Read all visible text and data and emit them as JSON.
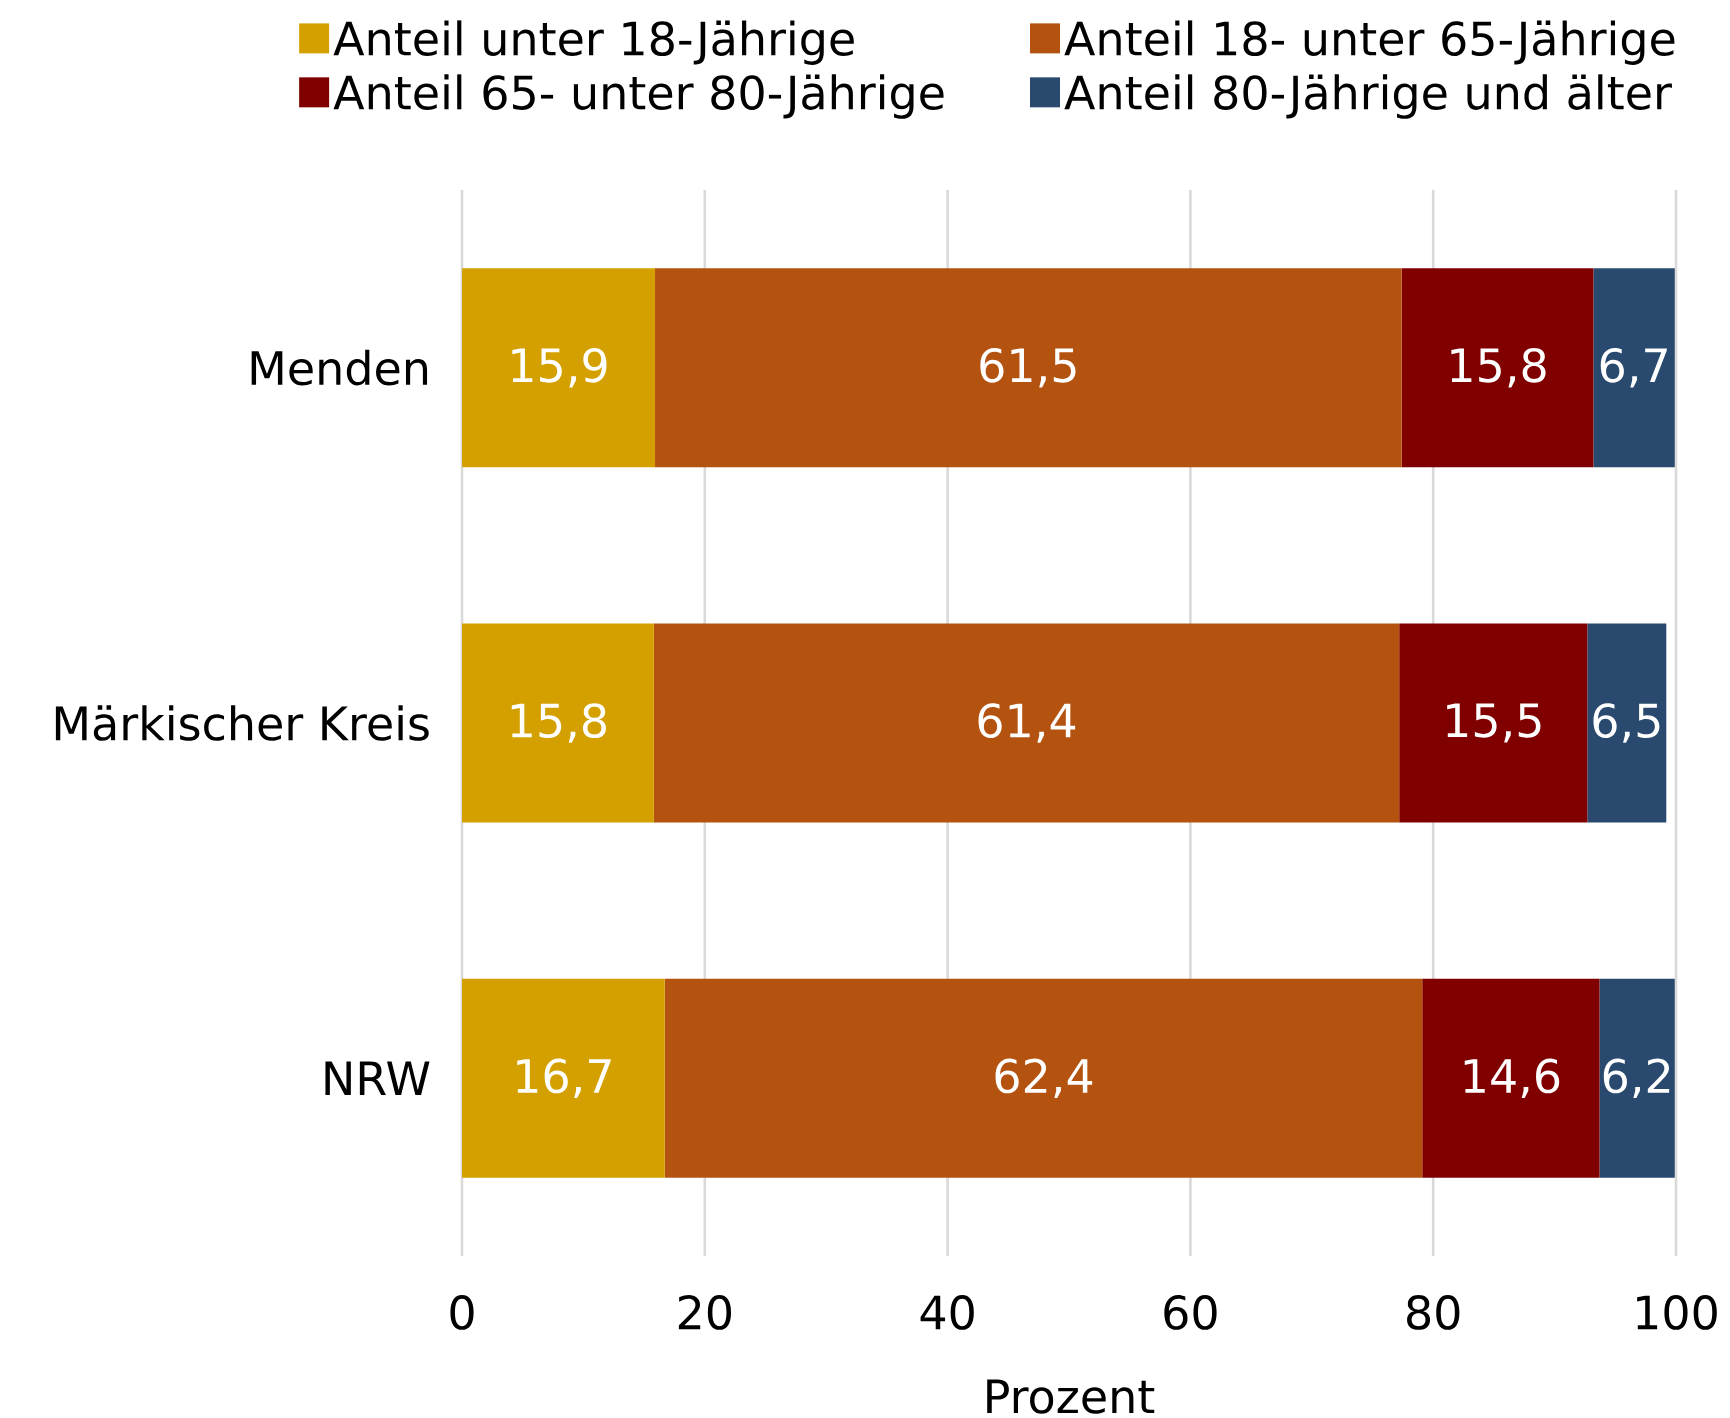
{
  "chart_data": {
    "type": "bar",
    "orientation": "horizontal",
    "stacked": true,
    "categories": [
      "Menden",
      "Märkischer Kreis",
      "NRW"
    ],
    "series": [
      {
        "name": "Anteil unter 18-Jährige",
        "color": "#d4a000",
        "values": [
          15.9,
          15.8,
          16.7
        ],
        "value_labels": [
          "15,9",
          "15,8",
          "16,7"
        ]
      },
      {
        "name": "Anteil 18- unter 65-Jährige",
        "color": "#b45210",
        "values": [
          61.5,
          61.4,
          62.4
        ],
        "value_labels": [
          "61,5",
          "61,4",
          "62,4"
        ]
      },
      {
        "name": "Anteil 65- unter 80-Jährige",
        "color": "#800000",
        "values": [
          15.8,
          15.5,
          14.6
        ],
        "value_labels": [
          "15,8",
          "15,5",
          "14,6"
        ]
      },
      {
        "name": "Anteil 80-Jährige und älter",
        "color": "#294a6e",
        "values": [
          6.7,
          6.5,
          6.2
        ],
        "value_labels": [
          "6,7",
          "6,5",
          "6,2"
        ]
      }
    ],
    "xlim": [
      0,
      100
    ],
    "xticks": [
      0,
      20,
      40,
      60,
      80,
      100
    ],
    "xlabel": "Prozent",
    "grid": "x",
    "legend": "top"
  }
}
